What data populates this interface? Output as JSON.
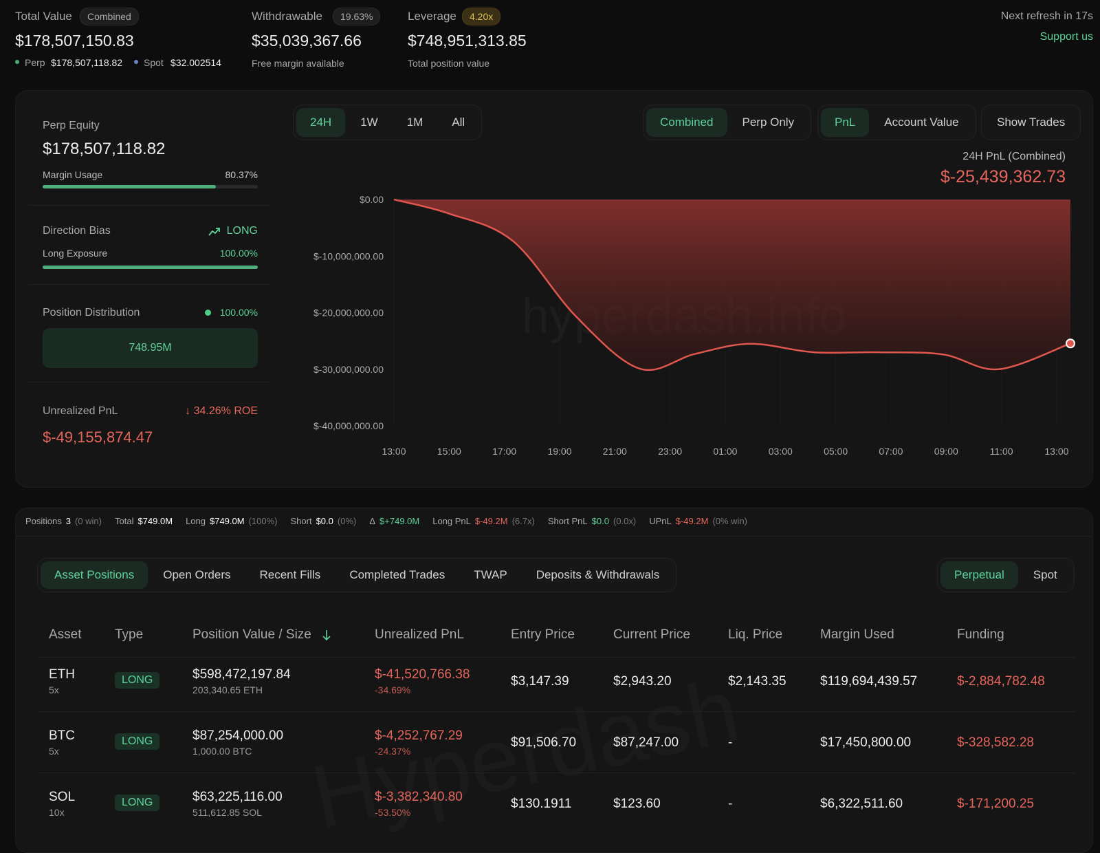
{
  "header": {
    "total_value": {
      "label": "Total Value",
      "badge": "Combined",
      "value": "$178,507,150.83",
      "perp_label": "Perp",
      "perp_value": "$178,507,118.82",
      "spot_label": "Spot",
      "spot_value": "$32.002514"
    },
    "withdrawable": {
      "label": "Withdrawable",
      "badge": "19.63%",
      "value": "$35,039,367.66",
      "note": "Free margin available"
    },
    "leverage": {
      "label": "Leverage",
      "badge": "4.20x",
      "value": "$748,951,313.85",
      "note": "Total position value"
    },
    "refresh": "Next refresh in 17s",
    "support": "Support us"
  },
  "summary": {
    "perp_equity": {
      "label": "Perp Equity",
      "value": "$178,507,118.82",
      "usage_label": "Margin Usage",
      "usage": {
        "value": 80.37,
        "label": "80.37%"
      }
    },
    "direction": {
      "label": "Direction Bias",
      "bias": "LONG",
      "exposure_label": "Long Exposure",
      "exposure": {
        "value": 100,
        "label": "100.00%"
      }
    },
    "distribution": {
      "label": "Position Distribution",
      "share": "100.00%",
      "total": "748.95M"
    },
    "unrealized": {
      "label": "Unrealized PnL",
      "roe": "34.26% ROE",
      "value": "$-49,155,874.47"
    }
  },
  "controls": {
    "ranges": [
      "24H",
      "1W",
      "1M",
      "All"
    ],
    "views": [
      "Combined",
      "Perp Only"
    ],
    "metrics": [
      "PnL",
      "Account Value"
    ],
    "trades": "Show Trades"
  },
  "chart_data": {
    "type": "area",
    "title": "24H PnL (Combined)",
    "subtitle": "$-25,439,362.73",
    "color": "#e0574f",
    "x": [
      0,
      2,
      4.3,
      6.6,
      8.9,
      10.9,
      12.9,
      15.2,
      17.6,
      19.9,
      21.9,
      24.5
    ],
    "values": [
      0,
      -2500000,
      -7300000,
      -20700000,
      -29900000,
      -27300000,
      -25500000,
      -27000000,
      -27000000,
      -27400000,
      -30000000,
      -25439362.73
    ],
    "xlim": [
      0,
      24.5
    ],
    "xticks": [
      {
        "value": 0,
        "label": "13:00"
      },
      {
        "value": 2,
        "label": "15:00"
      },
      {
        "value": 4,
        "label": "17:00"
      },
      {
        "value": 6,
        "label": "19:00"
      },
      {
        "value": 8,
        "label": "21:00"
      },
      {
        "value": 10,
        "label": "23:00"
      },
      {
        "value": 12,
        "label": "01:00"
      },
      {
        "value": 14,
        "label": "03:00"
      },
      {
        "value": 16,
        "label": "05:00"
      },
      {
        "value": 18,
        "label": "07:00"
      },
      {
        "value": 20,
        "label": "09:00"
      },
      {
        "value": 22,
        "label": "11:00"
      },
      {
        "value": 24,
        "label": "13:00"
      }
    ],
    "ylim": [
      -40000000,
      0
    ],
    "yticks": [
      {
        "value": 0,
        "label": "$0.00"
      },
      {
        "value": -10000000,
        "label": "$-10,000,000.00"
      },
      {
        "value": -20000000,
        "label": "$-20,000,000.00"
      },
      {
        "value": -30000000,
        "label": "$-30,000,000.00"
      },
      {
        "value": -40000000,
        "label": "$-40,000,000.00"
      }
    ],
    "grid": true
  },
  "watermarks": [
    "hyperdash.info",
    "Hyperdash"
  ],
  "stats": [
    {
      "label": "Positions",
      "value": "3",
      "note": "(0 win)"
    },
    {
      "label": "Total",
      "value": "$749.0M"
    },
    {
      "label": "Long",
      "value": "$749.0M",
      "note": "(100%)"
    },
    {
      "label": "Short",
      "value": "$0.0",
      "note": "(0%)"
    },
    {
      "label": "Δ",
      "value": "$+749.0M"
    },
    {
      "label": "Long PnL",
      "value": "$-49.2M",
      "note": "(6.7x)"
    },
    {
      "label": "Short PnL",
      "value": "$0.0",
      "note": "(0.0x)"
    },
    {
      "label": "UPnL",
      "value": "$-49.2M",
      "note": "(0% win)"
    }
  ],
  "tabs": [
    "Asset Positions",
    "Open Orders",
    "Recent Fills",
    "Completed Trades",
    "TWAP",
    "Deposits & Withdrawals"
  ],
  "markets": [
    "Perpetual",
    "Spot"
  ],
  "table": {
    "columns": [
      "Asset",
      "Type",
      "Position Value / Size",
      "Unrealized PnL",
      "Entry Price",
      "Current Price",
      "Liq. Price",
      "Margin Used",
      "Funding"
    ],
    "rows": [
      {
        "asset": "ETH",
        "leverage": "5x",
        "type": "LONG",
        "value": "$598,472,197.84",
        "size": "203,340.65 ETH",
        "pnl": "$-41,520,766.38",
        "pnl_pct": "-34.69%",
        "entry": "$3,147.39",
        "current": "$2,943.20",
        "liq": "$2,143.35",
        "margin": "$119,694,439.57",
        "funding": "$-2,884,782.48"
      },
      {
        "asset": "BTC",
        "leverage": "5x",
        "type": "LONG",
        "value": "$87,254,000.00",
        "size": "1,000.00 BTC",
        "pnl": "$-4,252,767.29",
        "pnl_pct": "-24.37%",
        "entry": "$91,506.70",
        "current": "$87,247.00",
        "liq": "-",
        "margin": "$17,450,800.00",
        "funding": "$-328,582.28"
      },
      {
        "asset": "SOL",
        "leverage": "10x",
        "type": "LONG",
        "value": "$63,225,116.00",
        "size": "511,612.85 SOL",
        "pnl": "$-3,382,340.80",
        "pnl_pct": "-53.50%",
        "entry": "$130.1911",
        "current": "$123.60",
        "liq": "-",
        "margin": "$6,322,511.60",
        "funding": "$-171,200.25"
      }
    ]
  }
}
